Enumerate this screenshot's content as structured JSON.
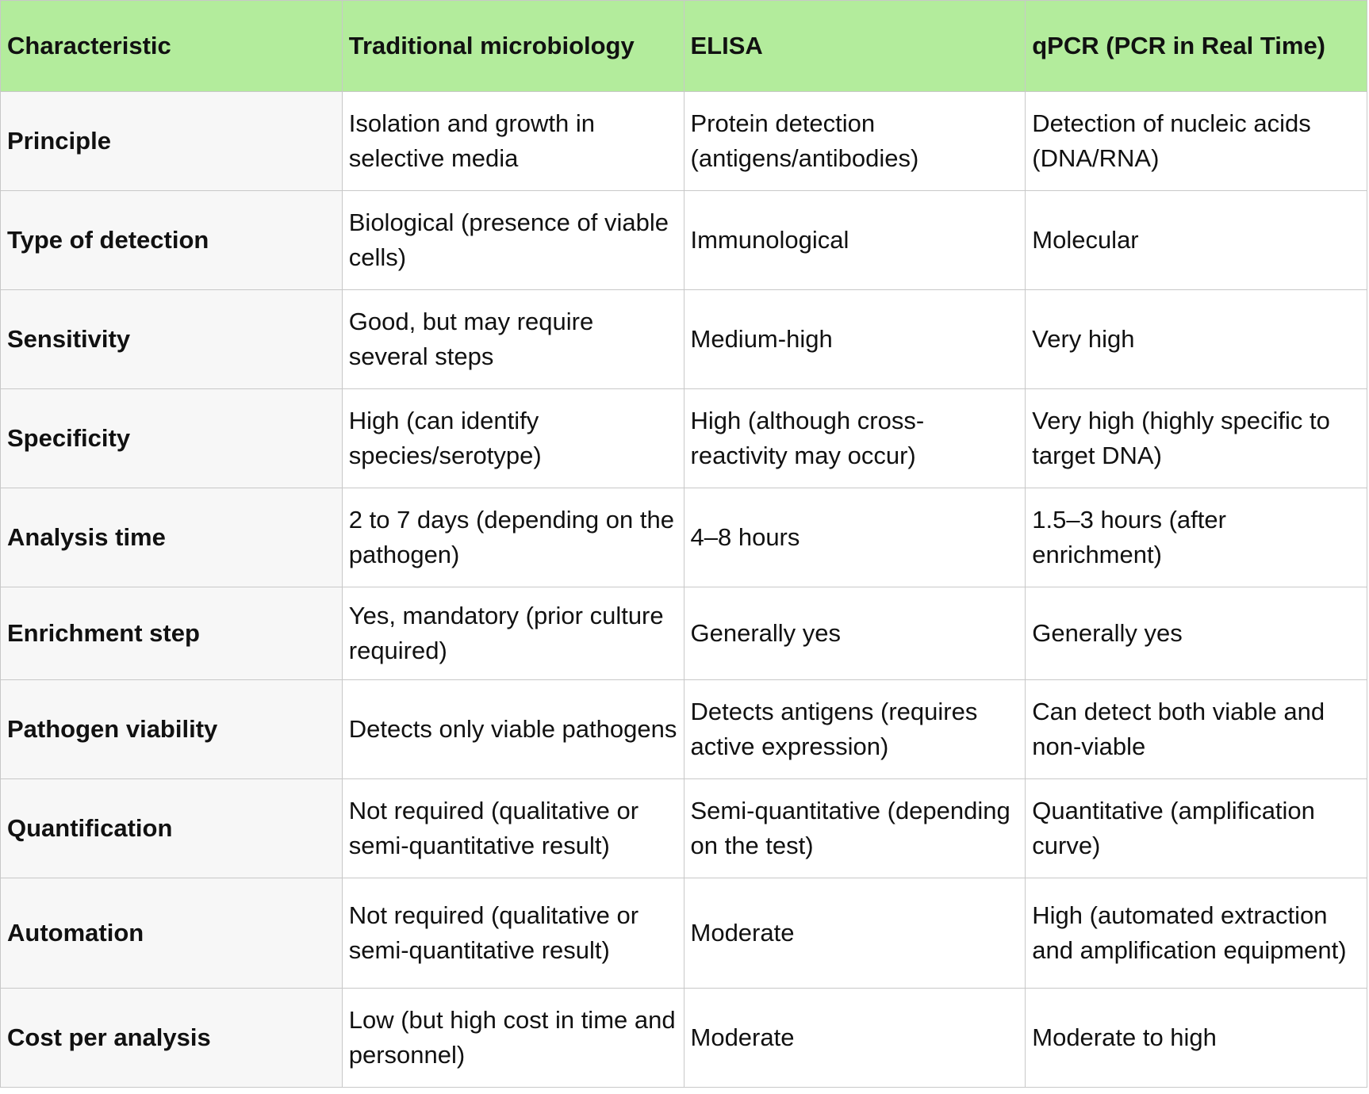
{
  "table": {
    "header": [
      "Characteristic",
      "Traditional microbiology",
      "ELISA",
      "qPCR (PCR in Real Time)"
    ],
    "rows": [
      [
        "Principle",
        "Isolation and growth in selective media",
        "Protein detection (antigens/antibodies)",
        "Detection of nucleic acids (DNA/RNA)"
      ],
      [
        "Type of detection",
        "Biological (presence of viable cells)",
        "Immunological",
        "Molecular"
      ],
      [
        "Sensitivity",
        "Good, but may require several steps",
        "Medium-high",
        "Very high"
      ],
      [
        "Specificity",
        "High (can identify species/serotype)",
        "High (although cross-reactivity may occur)",
        "Very high (highly specific to target DNA)"
      ],
      [
        "Analysis time",
        "2 to 7 days (depending on the pathogen)",
        "4–8 hours",
        "1.5–3 hours (after enrichment)"
      ],
      [
        "Enrichment step",
        "Yes, mandatory (prior culture required)",
        "Generally yes",
        "Generally yes"
      ],
      [
        "Pathogen viability",
        "Detects only viable pathogens",
        "Detects antigens (requires active expression)",
        "Can detect both viable and non-viable"
      ],
      [
        "Quantification",
        "Not required (qualitative or semi-quantitative result)",
        "Semi-quantitative (depending on the test)",
        "Quantitative (amplification curve)"
      ],
      [
        "Automation",
        "Not required (qualitative or semi-quantitative result)",
        "Moderate",
        "High (automated extraction and amplification equipment)"
      ],
      [
        "Cost per analysis",
        "Low (but high cost in time and personnel)",
        "Moderate",
        "Moderate to high"
      ]
    ]
  }
}
